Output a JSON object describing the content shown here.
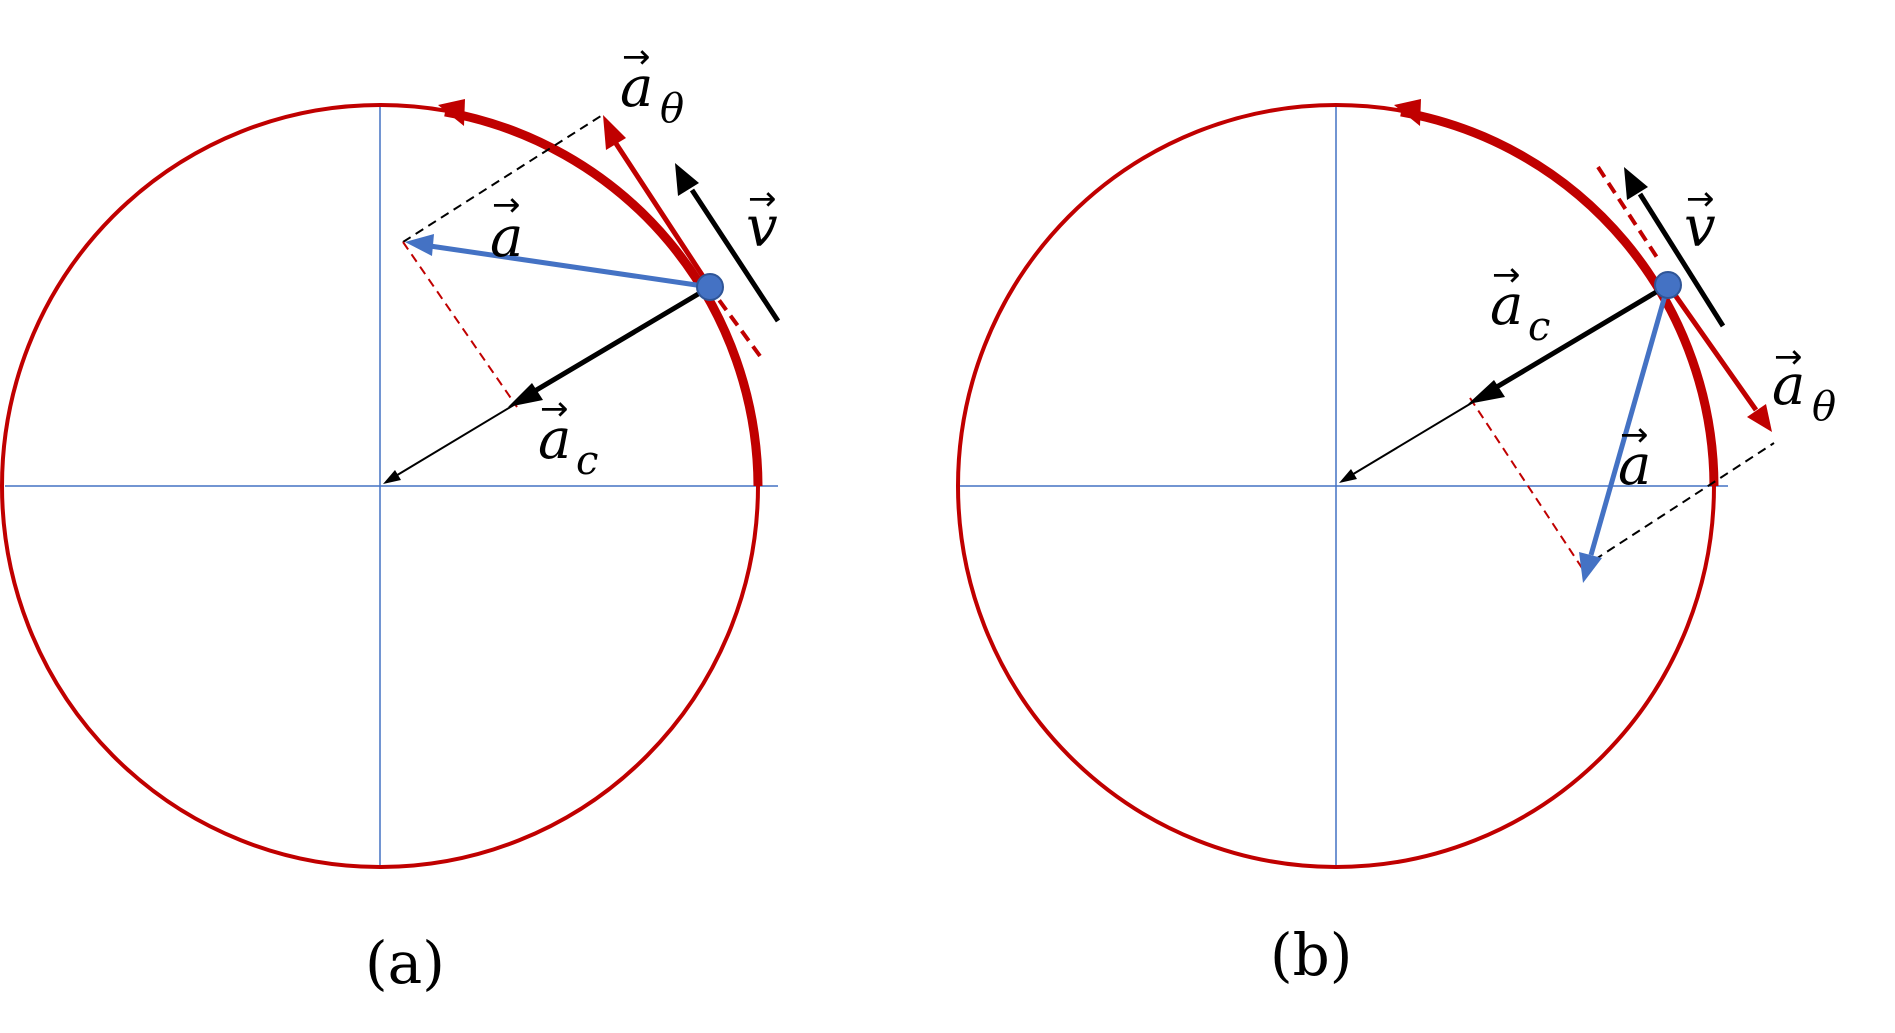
{
  "panels": [
    {
      "caption": "(a)",
      "vectors": [
        {
          "id": "a_theta",
          "base": "a",
          "subscript": "θ"
        },
        {
          "id": "v",
          "base": "v",
          "subscript": ""
        },
        {
          "id": "a",
          "base": "a",
          "subscript": ""
        },
        {
          "id": "a_c",
          "base": "a",
          "subscript": "c"
        }
      ]
    },
    {
      "caption": "(b)",
      "vectors": [
        {
          "id": "v",
          "base": "v",
          "subscript": ""
        },
        {
          "id": "a_c",
          "base": "a",
          "subscript": "c"
        },
        {
          "id": "a_theta",
          "base": "a",
          "subscript": "θ"
        },
        {
          "id": "a",
          "base": "a",
          "subscript": ""
        }
      ]
    }
  ],
  "vector_arrow": "→",
  "colors": {
    "circle": "#c00000",
    "axes": "#4472c4",
    "accel": "#4472c4",
    "tangential": "#c00000",
    "velocity": "#000000",
    "centripetal": "#000000",
    "dashed_black": "#000000",
    "dashed_red": "#c00000"
  }
}
